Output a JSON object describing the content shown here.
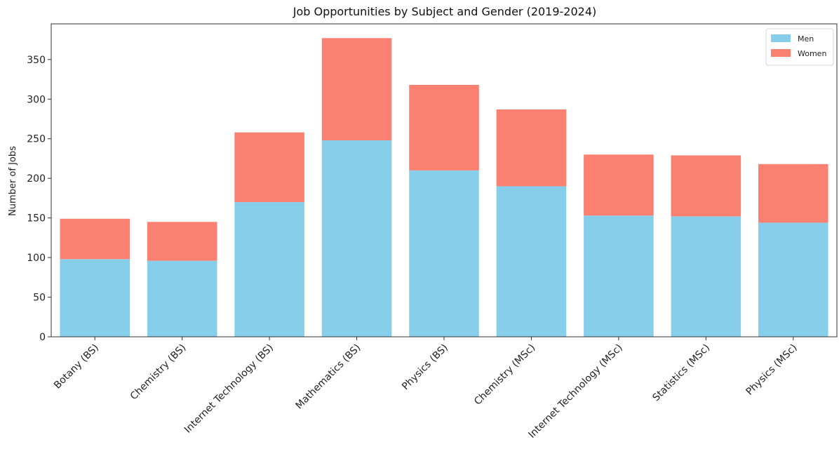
{
  "chart_data": {
    "type": "bar",
    "stacked": true,
    "title": "Job Opportunities by Subject and Gender (2019-2024)",
    "xlabel": "",
    "ylabel": "Number of Jobs",
    "ylim": [
      0,
      395
    ],
    "yticks": [
      0,
      50,
      100,
      150,
      200,
      250,
      300,
      350
    ],
    "grid": false,
    "legend_position": "top-right",
    "categories": [
      "Botany (BS)",
      "Chemistry (BS)",
      "Internet Technology (BS)",
      "Mathematics (BS)",
      "Physics (BS)",
      "Chemistry (MSc)",
      "Internet Technology (MSc)",
      "Statistics (MSc)",
      "Physics (MSc)"
    ],
    "series": [
      {
        "name": "Men",
        "color": "#87CEEB",
        "values": [
          98,
          96,
          170,
          248,
          210,
          190,
          153,
          152,
          144
        ]
      },
      {
        "name": "Women",
        "color": "#FA8072",
        "values": [
          51,
          49,
          88,
          129,
          108,
          97,
          77,
          77,
          74
        ]
      }
    ]
  }
}
